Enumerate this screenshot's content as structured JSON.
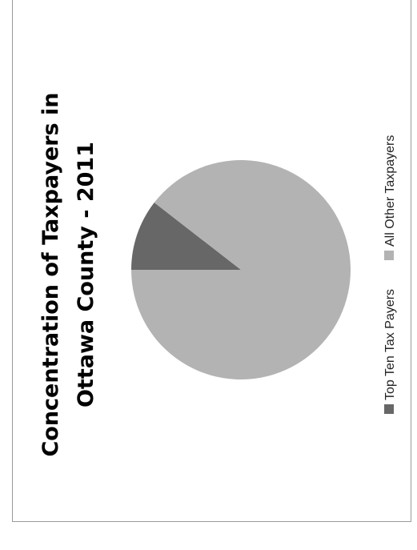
{
  "chart_data": {
    "type": "pie",
    "title_lines": [
      "Concentration of Taxpayers in",
      "Ottawa County - 2011"
    ],
    "series": [
      {
        "name": "Top Ten Tax Payers",
        "value": 10.5,
        "color": "#676767"
      },
      {
        "name": "All Other Taxpayers",
        "value": 89.5,
        "color": "#b3b3b3"
      }
    ],
    "legend_position": "bottom",
    "orientation": "rotated-90-ccw"
  }
}
